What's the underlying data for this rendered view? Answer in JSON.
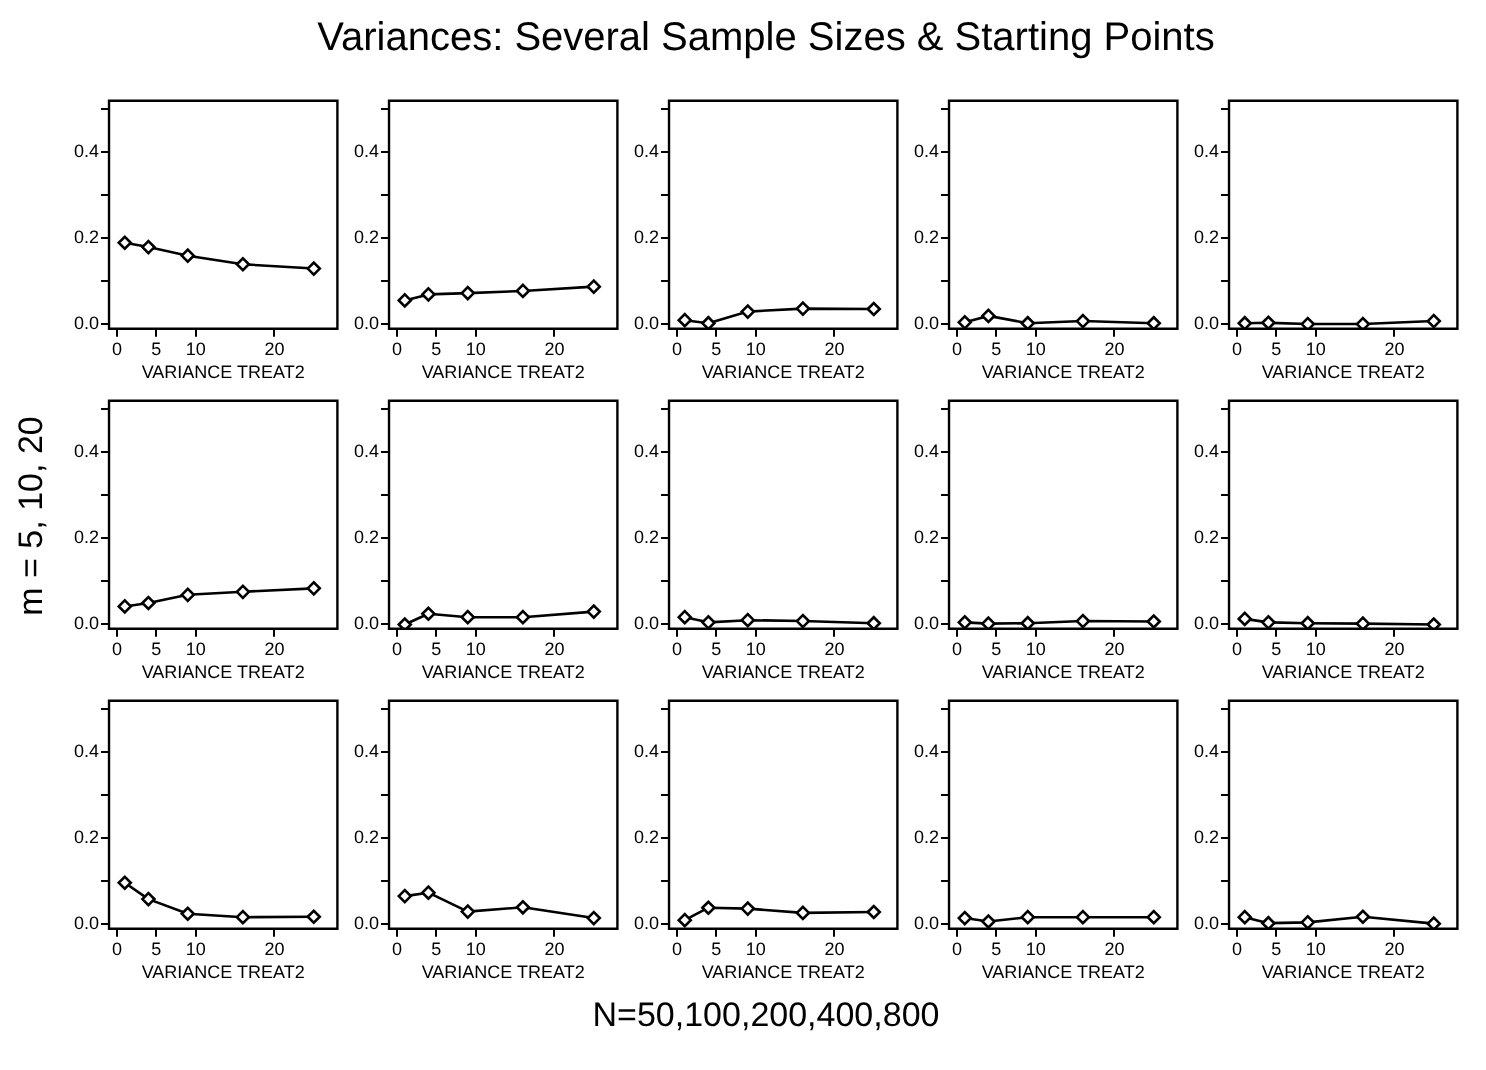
{
  "chart_data": [
    {
      "type": "other",
      "title": "Variances: Several Sample Sizes & Starting Points",
      "xlabel": "N=50,100,200,400,800",
      "ylabel": "m = 5, 10, 20"
    },
    {
      "type": "line",
      "x": [
        1,
        4,
        9,
        16,
        25
      ],
      "values": [
        0.19,
        0.18,
        0.16,
        0.14,
        0.13
      ],
      "xlabel": "VARIANCE TREAT2",
      "xlim": [
        -1,
        28
      ],
      "ylim": [
        -0.01,
        0.52
      ],
      "xticks": [
        0,
        5,
        10,
        20
      ],
      "yticks": [
        {
          "value": 0,
          "label": "0.0"
        },
        {
          "value": 0.1,
          "label": null
        },
        {
          "value": 0.2,
          "label": "0.2"
        },
        {
          "value": 0.3,
          "label": null
        },
        {
          "value": 0.4,
          "label": "0.4"
        },
        {
          "value": 0.5,
          "label": null
        }
      ],
      "marker": "diamond",
      "color": "#000000"
    },
    {
      "type": "line",
      "x": [
        1,
        4,
        9,
        16,
        25
      ],
      "values": [
        0.056,
        0.07,
        0.073,
        0.078,
        0.088
      ],
      "xlabel": "VARIANCE TREAT2",
      "xlim": [
        -1,
        28
      ],
      "ylim": [
        -0.01,
        0.52
      ],
      "xticks": [
        0,
        5,
        10,
        20
      ],
      "yticks": [
        {
          "value": 0,
          "label": "0.0"
        },
        {
          "value": 0.1,
          "label": null
        },
        {
          "value": 0.2,
          "label": "0.2"
        },
        {
          "value": 0.3,
          "label": null
        },
        {
          "value": 0.4,
          "label": "0.4"
        },
        {
          "value": 0.5,
          "label": null
        }
      ],
      "marker": "diamond",
      "color": "#000000"
    },
    {
      "type": "line",
      "x": [
        1,
        4,
        9,
        16,
        25
      ],
      "values": [
        0.01,
        0.003,
        0.03,
        0.037,
        0.036
      ],
      "xlabel": "VARIANCE TREAT2",
      "xlim": [
        -1,
        28
      ],
      "ylim": [
        -0.01,
        0.52
      ],
      "xticks": [
        0,
        5,
        10,
        20
      ],
      "yticks": [
        {
          "value": 0,
          "label": "0.0"
        },
        {
          "value": 0.1,
          "label": null
        },
        {
          "value": 0.2,
          "label": "0.2"
        },
        {
          "value": 0.3,
          "label": null
        },
        {
          "value": 0.4,
          "label": "0.4"
        },
        {
          "value": 0.5,
          "label": null
        }
      ],
      "marker": "diamond",
      "color": "#000000"
    },
    {
      "type": "line",
      "x": [
        1,
        4,
        9,
        16,
        25
      ],
      "values": [
        0.005,
        0.02,
        0.003,
        0.008,
        0.003
      ],
      "xlabel": "VARIANCE TREAT2",
      "xlim": [
        -1,
        28
      ],
      "ylim": [
        -0.01,
        0.52
      ],
      "xticks": [
        0,
        5,
        10,
        20
      ],
      "yticks": [
        {
          "value": 0,
          "label": "0.0"
        },
        {
          "value": 0.1,
          "label": null
        },
        {
          "value": 0.2,
          "label": "0.2"
        },
        {
          "value": 0.3,
          "label": null
        },
        {
          "value": 0.4,
          "label": "0.4"
        },
        {
          "value": 0.5,
          "label": null
        }
      ],
      "marker": "diamond",
      "color": "#000000"
    },
    {
      "type": "line",
      "x": [
        1,
        4,
        9,
        16,
        25
      ],
      "values": [
        0.003,
        0.004,
        0.001,
        0.001,
        0.008
      ],
      "xlabel": "VARIANCE TREAT2",
      "xlim": [
        -1,
        28
      ],
      "ylim": [
        -0.01,
        0.52
      ],
      "xticks": [
        0,
        5,
        10,
        20
      ],
      "yticks": [
        {
          "value": 0,
          "label": "0.0"
        },
        {
          "value": 0.1,
          "label": null
        },
        {
          "value": 0.2,
          "label": "0.2"
        },
        {
          "value": 0.3,
          "label": null
        },
        {
          "value": 0.4,
          "label": "0.4"
        },
        {
          "value": 0.5,
          "label": null
        }
      ],
      "marker": "diamond",
      "color": "#000000"
    },
    {
      "type": "line",
      "x": [
        1,
        4,
        9,
        16,
        25
      ],
      "values": [
        0.042,
        0.05,
        0.069,
        0.076,
        0.084
      ],
      "xlabel": "VARIANCE TREAT2",
      "xlim": [
        -1,
        28
      ],
      "ylim": [
        -0.01,
        0.52
      ],
      "xticks": [
        0,
        5,
        10,
        20
      ],
      "yticks": [
        {
          "value": 0,
          "label": "0.0"
        },
        {
          "value": 0.1,
          "label": null
        },
        {
          "value": 0.2,
          "label": "0.2"
        },
        {
          "value": 0.3,
          "label": null
        },
        {
          "value": 0.4,
          "label": "0.4"
        },
        {
          "value": 0.5,
          "label": null
        }
      ],
      "marker": "diamond",
      "color": "#000000"
    },
    {
      "type": "line",
      "x": [
        1,
        4,
        9,
        16,
        25
      ],
      "values": [
        0.0,
        0.025,
        0.017,
        0.017,
        0.03
      ],
      "xlabel": "VARIANCE TREAT2",
      "xlim": [
        -1,
        28
      ],
      "ylim": [
        -0.01,
        0.52
      ],
      "xticks": [
        0,
        5,
        10,
        20
      ],
      "yticks": [
        {
          "value": 0,
          "label": "0.0"
        },
        {
          "value": 0.1,
          "label": null
        },
        {
          "value": 0.2,
          "label": "0.2"
        },
        {
          "value": 0.3,
          "label": null
        },
        {
          "value": 0.4,
          "label": "0.4"
        },
        {
          "value": 0.5,
          "label": null
        }
      ],
      "marker": "diamond",
      "color": "#000000"
    },
    {
      "type": "line",
      "x": [
        1,
        4,
        9,
        16,
        25
      ],
      "values": [
        0.017,
        0.005,
        0.01,
        0.008,
        0.003
      ],
      "xlabel": "VARIANCE TREAT2",
      "xlim": [
        -1,
        28
      ],
      "ylim": [
        -0.01,
        0.52
      ],
      "xticks": [
        0,
        5,
        10,
        20
      ],
      "yticks": [
        {
          "value": 0,
          "label": "0.0"
        },
        {
          "value": 0.1,
          "label": null
        },
        {
          "value": 0.2,
          "label": "0.2"
        },
        {
          "value": 0.3,
          "label": null
        },
        {
          "value": 0.4,
          "label": "0.4"
        },
        {
          "value": 0.5,
          "label": null
        }
      ],
      "marker": "diamond",
      "color": "#000000"
    },
    {
      "type": "line",
      "x": [
        1,
        4,
        9,
        16,
        25
      ],
      "values": [
        0.005,
        0.002,
        0.003,
        0.008,
        0.007
      ],
      "xlabel": "VARIANCE TREAT2",
      "xlim": [
        -1,
        28
      ],
      "ylim": [
        -0.01,
        0.52
      ],
      "xticks": [
        0,
        5,
        10,
        20
      ],
      "yticks": [
        {
          "value": 0,
          "label": "0.0"
        },
        {
          "value": 0.1,
          "label": null
        },
        {
          "value": 0.2,
          "label": "0.2"
        },
        {
          "value": 0.3,
          "label": null
        },
        {
          "value": 0.4,
          "label": "0.4"
        },
        {
          "value": 0.5,
          "label": null
        }
      ],
      "marker": "diamond",
      "color": "#000000"
    },
    {
      "type": "line",
      "x": [
        1,
        4,
        9,
        16,
        25
      ],
      "values": [
        0.013,
        0.005,
        0.003,
        0.002,
        0.0
      ],
      "xlabel": "VARIANCE TREAT2",
      "xlim": [
        -1,
        28
      ],
      "ylim": [
        -0.01,
        0.52
      ],
      "xticks": [
        0,
        5,
        10,
        20
      ],
      "yticks": [
        {
          "value": 0,
          "label": "0.0"
        },
        {
          "value": 0.1,
          "label": null
        },
        {
          "value": 0.2,
          "label": "0.2"
        },
        {
          "value": 0.3,
          "label": null
        },
        {
          "value": 0.4,
          "label": "0.4"
        },
        {
          "value": 0.5,
          "label": null
        }
      ],
      "marker": "diamond",
      "color": "#000000"
    },
    {
      "type": "line",
      "x": [
        1,
        4,
        9,
        16,
        25
      ],
      "values": [
        0.097,
        0.059,
        0.025,
        0.017,
        0.018
      ],
      "xlabel": "VARIANCE TREAT2",
      "xlim": [
        -1,
        28
      ],
      "ylim": [
        -0.01,
        0.52
      ],
      "xticks": [
        0,
        5,
        10,
        20
      ],
      "yticks": [
        {
          "value": 0,
          "label": "0.0"
        },
        {
          "value": 0.1,
          "label": null
        },
        {
          "value": 0.2,
          "label": "0.2"
        },
        {
          "value": 0.3,
          "label": null
        },
        {
          "value": 0.4,
          "label": "0.4"
        },
        {
          "value": 0.5,
          "label": null
        }
      ],
      "marker": "diamond",
      "color": "#000000"
    },
    {
      "type": "line",
      "x": [
        1,
        4,
        9,
        16,
        25
      ],
      "values": [
        0.066,
        0.074,
        0.03,
        0.04,
        0.015
      ],
      "xlabel": "VARIANCE TREAT2",
      "xlim": [
        -1,
        28
      ],
      "ylim": [
        -0.01,
        0.52
      ],
      "xticks": [
        0,
        5,
        10,
        20
      ],
      "yticks": [
        {
          "value": 0,
          "label": "0.0"
        },
        {
          "value": 0.1,
          "label": null
        },
        {
          "value": 0.2,
          "label": "0.2"
        },
        {
          "value": 0.3,
          "label": null
        },
        {
          "value": 0.4,
          "label": "0.4"
        },
        {
          "value": 0.5,
          "label": null
        }
      ],
      "marker": "diamond",
      "color": "#000000"
    },
    {
      "type": "line",
      "x": [
        1,
        4,
        9,
        16,
        25
      ],
      "values": [
        0.01,
        0.039,
        0.037,
        0.027,
        0.029
      ],
      "xlabel": "VARIANCE TREAT2",
      "xlim": [
        -1,
        28
      ],
      "ylim": [
        -0.01,
        0.52
      ],
      "xticks": [
        0,
        5,
        10,
        20
      ],
      "yticks": [
        {
          "value": 0,
          "label": "0.0"
        },
        {
          "value": 0.1,
          "label": null
        },
        {
          "value": 0.2,
          "label": "0.2"
        },
        {
          "value": 0.3,
          "label": null
        },
        {
          "value": 0.4,
          "label": "0.4"
        },
        {
          "value": 0.5,
          "label": null
        }
      ],
      "marker": "diamond",
      "color": "#000000"
    },
    {
      "type": "line",
      "x": [
        1,
        4,
        9,
        16,
        25
      ],
      "values": [
        0.015,
        0.007,
        0.017,
        0.017,
        0.017
      ],
      "xlabel": "VARIANCE TREAT2",
      "xlim": [
        -1,
        28
      ],
      "ylim": [
        -0.01,
        0.52
      ],
      "xticks": [
        0,
        5,
        10,
        20
      ],
      "yticks": [
        {
          "value": 0,
          "label": "0.0"
        },
        {
          "value": 0.1,
          "label": null
        },
        {
          "value": 0.2,
          "label": "0.2"
        },
        {
          "value": 0.3,
          "label": null
        },
        {
          "value": 0.4,
          "label": "0.4"
        },
        {
          "value": 0.5,
          "label": null
        }
      ],
      "marker": "diamond",
      "color": "#000000"
    },
    {
      "type": "line",
      "x": [
        1,
        4,
        9,
        16,
        25
      ],
      "values": [
        0.017,
        0.003,
        0.005,
        0.018,
        0.002
      ],
      "xlabel": "VARIANCE TREAT2",
      "xlim": [
        -1,
        28
      ],
      "ylim": [
        -0.01,
        0.52
      ],
      "xticks": [
        0,
        5,
        10,
        20
      ],
      "yticks": [
        {
          "value": 0,
          "label": "0.0"
        },
        {
          "value": 0.1,
          "label": null
        },
        {
          "value": 0.2,
          "label": "0.2"
        },
        {
          "value": 0.3,
          "label": null
        },
        {
          "value": 0.4,
          "label": "0.4"
        },
        {
          "value": 0.5,
          "label": null
        }
      ],
      "marker": "diamond",
      "color": "#000000"
    }
  ]
}
